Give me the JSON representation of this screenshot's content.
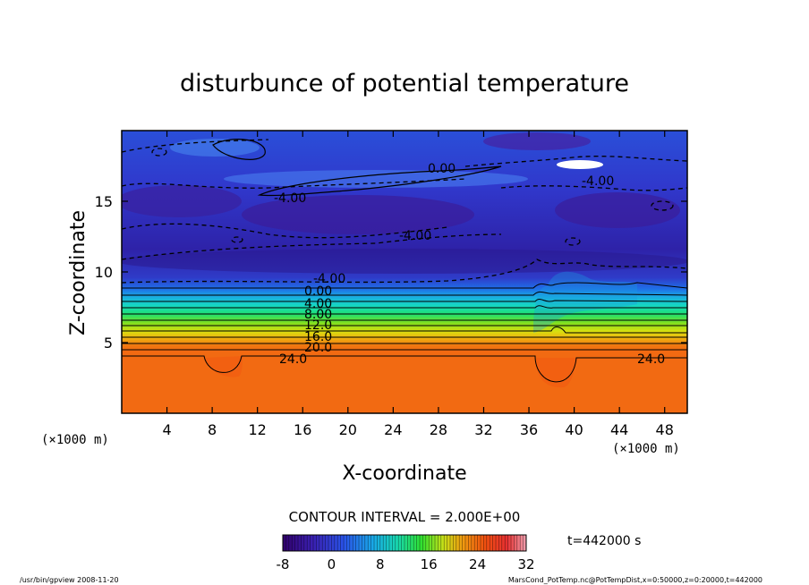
{
  "chart_data": {
    "type": "heatmap",
    "title": "disturbunce of potential temperature",
    "xlabel": "X-coordinate",
    "ylabel": "Z-coordinate",
    "x_unit": "(×1000 m)",
    "y_unit": "(×1000 m)",
    "xlim": [
      0,
      50
    ],
    "ylim": [
      0,
      20
    ],
    "x_ticks": [
      "4",
      "8",
      "12",
      "16",
      "20",
      "24",
      "28",
      "32",
      "36",
      "40",
      "44",
      "48"
    ],
    "y_ticks": [
      "5",
      "10",
      "15"
    ],
    "contour_interval": "CONTOUR INTERVAL = 2.000E+00",
    "contour_labels": [
      "0.00",
      "-4.00",
      "-4.00",
      "-4.00",
      "-4.00",
      "0.00",
      "4.00",
      "8.00",
      "12.0",
      "16.0",
      "20.0",
      "24.0",
      "24.0"
    ],
    "colorbar": {
      "min": -8,
      "max": 32,
      "ticks": [
        "-8",
        "0",
        "8",
        "16",
        "24",
        "32"
      ]
    },
    "time_label": "t=442000 s",
    "footer_left": "/usr/bin/gpview  2008-11-20",
    "footer_right": "MarsCond_PotTemp.nc@PotTempDist,x=0:50000,z=0:20000,t=442000"
  }
}
